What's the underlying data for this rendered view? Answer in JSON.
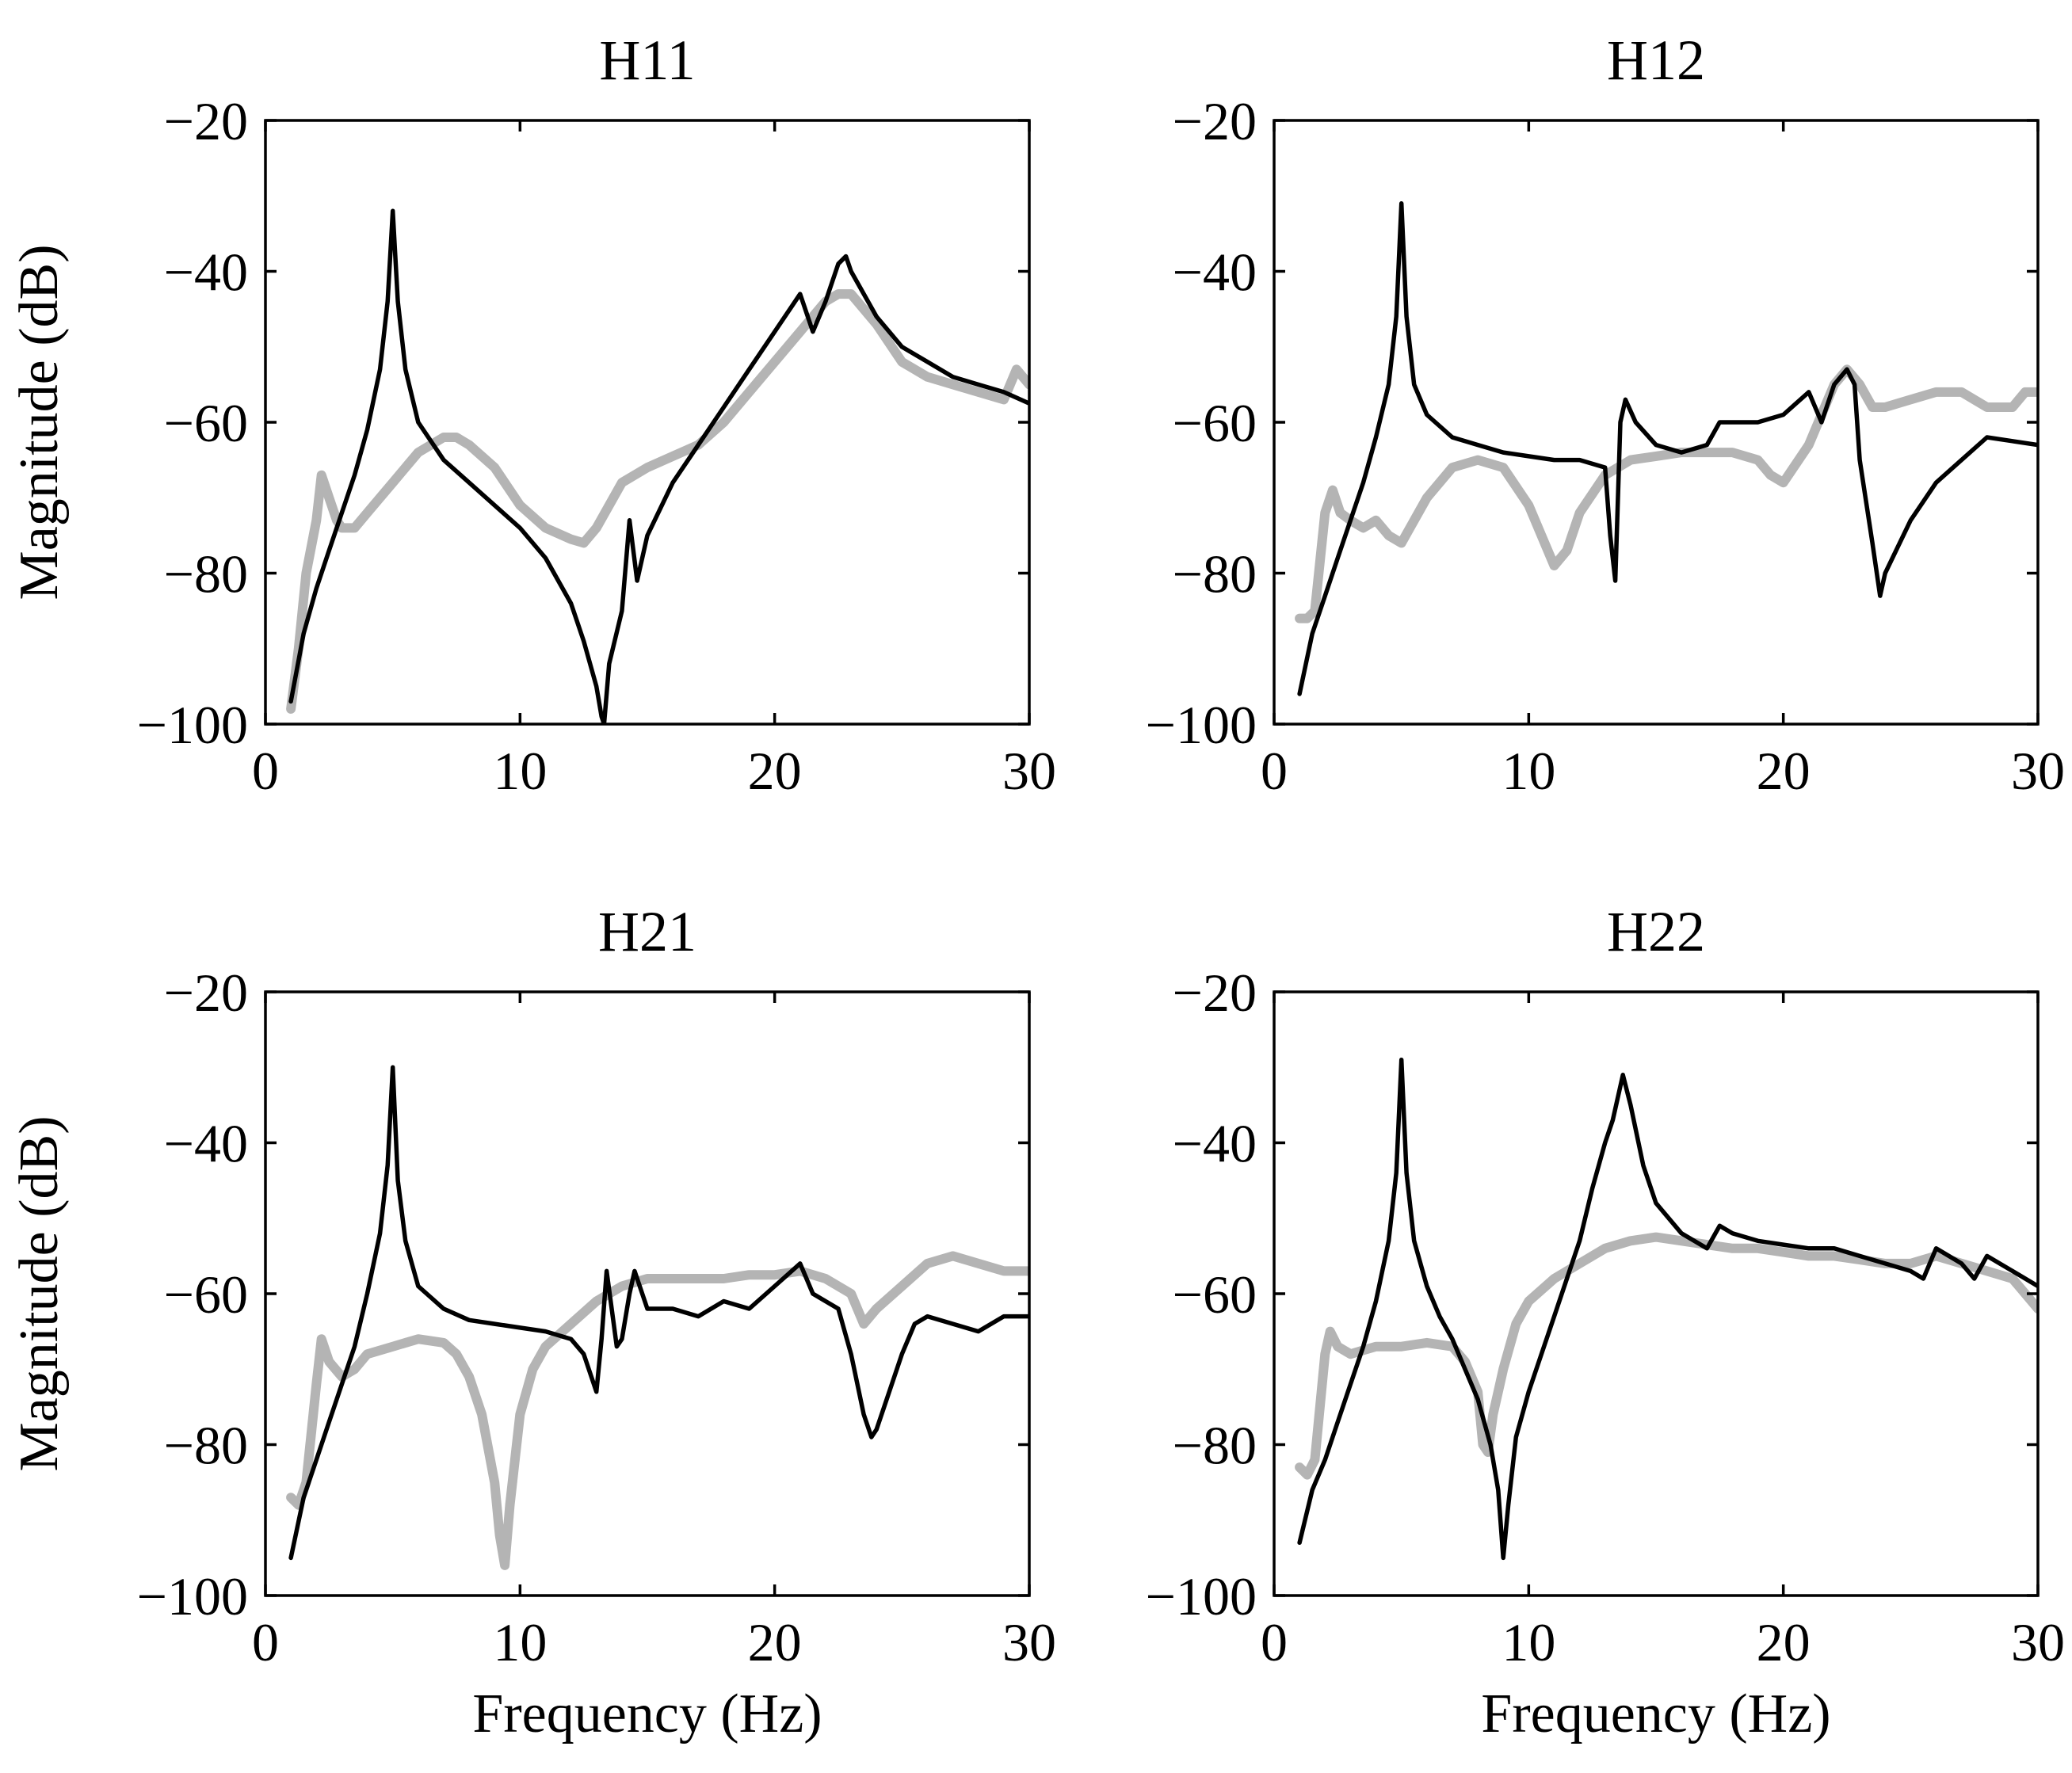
{
  "chart_data": [
    {
      "type": "line",
      "title": "H11",
      "xlabel": "",
      "ylabel": "Magnitude (dB)",
      "xlim": [
        0,
        30
      ],
      "ylim": [
        -100,
        -20
      ],
      "xticks": [
        "0",
        "10",
        "20",
        "30"
      ],
      "yticks": [
        "−20",
        "−40",
        "−60",
        "−80",
        "−100"
      ],
      "grid": false,
      "series": [
        {
          "color": "#b4b4b4",
          "x": [
            1,
            1.3,
            1.6,
            2,
            2.2,
            2.5,
            2.8,
            3,
            3.5,
            4,
            5,
            6,
            7,
            7.5,
            8,
            9,
            10,
            11,
            12,
            12.5,
            13,
            13.5,
            14,
            15,
            16,
            17,
            18,
            19,
            20,
            21,
            22,
            22.5,
            23,
            24,
            25,
            26,
            27,
            28,
            29,
            29.5,
            30
          ],
          "y": [
            -98,
            -90,
            -80,
            -73,
            -67,
            -70,
            -73,
            -74,
            -74,
            -72,
            -68,
            -64,
            -62,
            -62,
            -63,
            -66,
            -71,
            -74,
            -75.5,
            -76,
            -74,
            -71,
            -68,
            -66,
            -64.5,
            -63,
            -60,
            -56,
            -52,
            -48,
            -44,
            -43,
            -43,
            -47,
            -52,
            -54,
            -55,
            -56,
            -57,
            -53,
            -55
          ]
        },
        {
          "color": "#000000",
          "x": [
            1,
            1.5,
            2,
            2.5,
            3,
            3.5,
            4,
            4.5,
            4.8,
            5,
            5.2,
            5.5,
            6,
            7,
            8,
            9,
            10,
            11,
            12,
            12.5,
            13,
            13.2,
            13.3,
            13.5,
            14,
            14.3,
            14.6,
            15,
            16,
            17,
            18,
            19,
            20,
            21,
            21.5,
            22,
            22.5,
            22.8,
            23,
            24,
            25,
            26,
            27,
            28,
            29,
            30
          ],
          "y": [
            -97,
            -88,
            -82,
            -77,
            -72,
            -67,
            -61,
            -53,
            -44,
            -32,
            -44,
            -53,
            -60,
            -65,
            -68,
            -71,
            -74,
            -78,
            -84,
            -89,
            -95,
            -99,
            -100,
            -92,
            -85,
            -73,
            -81,
            -75,
            -68,
            -63,
            -58,
            -53,
            -48,
            -43,
            -48,
            -44,
            -39,
            -38,
            -40,
            -46,
            -50,
            -52,
            -54,
            -55,
            -56,
            -57.5
          ]
        }
      ]
    },
    {
      "type": "line",
      "title": "H12",
      "xlabel": "",
      "ylabel": "",
      "xlim": [
        0,
        30
      ],
      "ylim": [
        -100,
        -20
      ],
      "xticks": [
        "0",
        "10",
        "20",
        "30"
      ],
      "yticks": [
        "−20",
        "−40",
        "−60",
        "−80",
        "−100"
      ],
      "grid": false,
      "series": [
        {
          "color": "#b4b4b4",
          "x": [
            1,
            1.3,
            1.6,
            2,
            2.3,
            2.6,
            3,
            3.5,
            4,
            4.5,
            5,
            6,
            7,
            8,
            9,
            10,
            10.5,
            11,
            11.5,
            12,
            13,
            14,
            15,
            16,
            17,
            18,
            19,
            19.5,
            20,
            21,
            22,
            22.5,
            23,
            23.5,
            24,
            25,
            26,
            27,
            28,
            29,
            29.5,
            30
          ],
          "y": [
            -86,
            -86,
            -85,
            -72,
            -69,
            -72,
            -73,
            -74,
            -73,
            -75,
            -76,
            -70,
            -66,
            -65,
            -66,
            -71,
            -75,
            -79,
            -77,
            -72,
            -67,
            -65,
            -64.5,
            -64,
            -64,
            -64,
            -65,
            -67,
            -68,
            -63,
            -55,
            -53,
            -55,
            -58,
            -58,
            -57,
            -56,
            -56,
            -58,
            -58,
            -56,
            -56
          ]
        },
        {
          "color": "#000000",
          "x": [
            1,
            1.5,
            2,
            2.5,
            3,
            3.5,
            4,
            4.5,
            4.8,
            5,
            5.2,
            5.5,
            6,
            7,
            8,
            9,
            10,
            11,
            12,
            13,
            13.2,
            13.4,
            13.6,
            13.8,
            14.2,
            15,
            16,
            17,
            17.5,
            18,
            19,
            20,
            21,
            21.5,
            22,
            22.5,
            22.8,
            23,
            23.5,
            23.8,
            24,
            25,
            26,
            27,
            28,
            29,
            30
          ],
          "y": [
            -96,
            -88,
            -83,
            -78,
            -73,
            -68,
            -62,
            -55,
            -46,
            -31,
            -46,
            -55,
            -59,
            -62,
            -63,
            -64,
            -64.5,
            -65,
            -65,
            -66,
            -75,
            -81,
            -60,
            -57,
            -60,
            -63,
            -64,
            -63,
            -60,
            -60,
            -60,
            -59,
            -56,
            -60,
            -55,
            -53,
            -55,
            -65,
            -76,
            -83,
            -80,
            -73,
            -68,
            -65,
            -62,
            -62.5,
            -63
          ]
        }
      ]
    },
    {
      "type": "line",
      "title": "H21",
      "xlabel": "Frequency (Hz)",
      "ylabel": "Magnitude (dB)",
      "xlim": [
        0,
        30
      ],
      "ylim": [
        -100,
        -20
      ],
      "xticks": [
        "0",
        "10",
        "20",
        "30"
      ],
      "yticks": [
        "−20",
        "−40",
        "−60",
        "−80",
        "−100"
      ],
      "grid": false,
      "series": [
        {
          "color": "#b4b4b4",
          "x": [
            1,
            1.3,
            1.6,
            2,
            2.2,
            2.5,
            3,
            3.5,
            4,
            5,
            6,
            7,
            7.5,
            8,
            8.5,
            9,
            9.2,
            9.4,
            9.6,
            10,
            10.5,
            11,
            12,
            13,
            14,
            15,
            16,
            17,
            18,
            19,
            20,
            21,
            22,
            23,
            23.5,
            24,
            25,
            26,
            27,
            28,
            29,
            30
          ],
          "y": [
            -87,
            -88,
            -85,
            -72,
            -66,
            -69,
            -71,
            -70,
            -68,
            -67,
            -66,
            -66.5,
            -68,
            -71,
            -76,
            -85,
            -92,
            -96,
            -88,
            -76,
            -70,
            -67,
            -64,
            -61,
            -59,
            -58,
            -58,
            -58,
            -58,
            -57.5,
            -57.5,
            -57,
            -58,
            -60,
            -64,
            -62,
            -59,
            -56,
            -55,
            -56,
            -57,
            -57
          ]
        },
        {
          "color": "#000000",
          "x": [
            1,
            1.5,
            2,
            2.5,
            3,
            3.5,
            4,
            4.5,
            4.8,
            5,
            5.2,
            5.5,
            6,
            7,
            8,
            9,
            10,
            11,
            12,
            12.5,
            13,
            13.2,
            13.4,
            13.6,
            13.8,
            14,
            14.3,
            14.5,
            15,
            16,
            17,
            18,
            19,
            20,
            21,
            21.5,
            22,
            22.5,
            23,
            23.5,
            23.8,
            24,
            24.5,
            25,
            25.5,
            26,
            27,
            28,
            29,
            30
          ],
          "y": [
            -95,
            -87,
            -82,
            -77,
            -72,
            -67,
            -60,
            -52,
            -43,
            -30,
            -45,
            -53,
            -59,
            -62,
            -63.5,
            -64,
            -64.5,
            -65,
            -66,
            -68,
            -73,
            -66,
            -57,
            -62,
            -67,
            -66,
            -60,
            -57,
            -62,
            -62,
            -63,
            -61,
            -62,
            -59,
            -56,
            -60,
            -61,
            -62,
            -68,
            -76,
            -79,
            -78,
            -73,
            -68,
            -64,
            -63,
            -64,
            -65,
            -63,
            -63
          ]
        }
      ]
    },
    {
      "type": "line",
      "title": "H22",
      "xlabel": "Frequency (Hz)",
      "ylabel": "",
      "xlim": [
        0,
        30
      ],
      "ylim": [
        -100,
        -20
      ],
      "xticks": [
        "0",
        "10",
        "20",
        "30"
      ],
      "yticks": [
        "−20",
        "−40",
        "−60",
        "−80",
        "−100"
      ],
      "grid": false,
      "series": [
        {
          "color": "#b4b4b4",
          "x": [
            1,
            1.3,
            1.6,
            2,
            2.2,
            2.5,
            3,
            3.5,
            4,
            5,
            6,
            7,
            7.5,
            8,
            8.2,
            8.4,
            8.6,
            8.8,
            9,
            9.5,
            10,
            11,
            12,
            13,
            14,
            15,
            16,
            17,
            18,
            19,
            20,
            21,
            22,
            23,
            24,
            25,
            26,
            27,
            28,
            29,
            30
          ],
          "y": [
            -83,
            -84,
            -82,
            -68,
            -65,
            -67,
            -68,
            -67.5,
            -67,
            -67,
            -66.5,
            -67,
            -69,
            -73,
            -80,
            -81,
            -76,
            -73,
            -70,
            -64,
            -61,
            -58,
            -56,
            -54,
            -53,
            -52.5,
            -53,
            -53.5,
            -54,
            -54,
            -54.5,
            -55,
            -55,
            -55.5,
            -56,
            -56,
            -55,
            -56,
            -57,
            -58,
            -62
          ]
        },
        {
          "color": "#000000",
          "x": [
            1,
            1.5,
            2,
            2.5,
            3,
            3.5,
            4,
            4.5,
            4.8,
            5,
            5.2,
            5.5,
            6,
            6.5,
            7,
            7.5,
            8,
            8.5,
            8.8,
            9,
            9.2,
            9.5,
            10,
            11,
            12,
            12.5,
            13,
            13.3,
            13.7,
            14,
            14.5,
            15,
            16,
            17,
            17.5,
            18,
            19,
            20,
            21,
            22,
            23,
            24,
            25,
            25.5,
            26,
            27,
            27.5,
            28,
            29,
            30
          ],
          "y": [
            -93,
            -86,
            -82,
            -77,
            -72,
            -67,
            -61,
            -53,
            -44,
            -29,
            -44,
            -53,
            -59,
            -63,
            -66,
            -70,
            -74,
            -80,
            -86,
            -95,
            -88,
            -79,
            -73,
            -63,
            -53,
            -46,
            -40,
            -37,
            -31,
            -35,
            -43,
            -48,
            -52,
            -54,
            -51,
            -52,
            -53,
            -53.5,
            -54,
            -54,
            -55,
            -56,
            -57,
            -58,
            -54,
            -56,
            -58,
            -55,
            -57,
            -59
          ]
        }
      ]
    }
  ]
}
